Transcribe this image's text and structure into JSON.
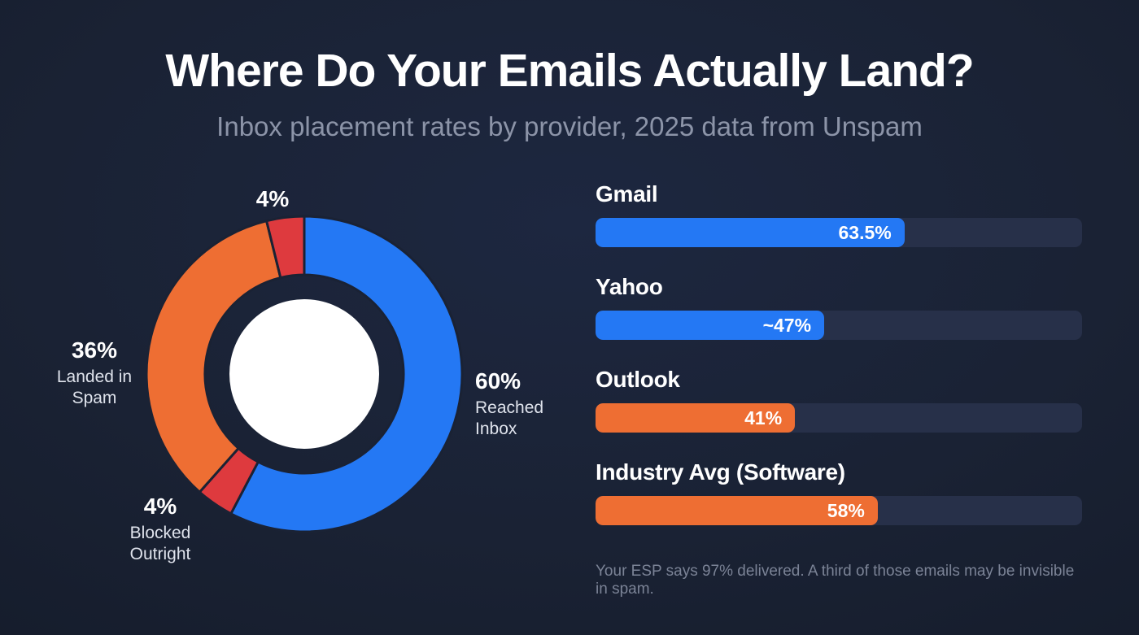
{
  "colors": {
    "background": "#1a2234",
    "blue": "#2478f4",
    "orange": "#ee6e33",
    "red": "#de3a3e",
    "track": "#273049",
    "white": "#ffffff"
  },
  "header": {
    "title": "Where Do Your Emails Actually Land?",
    "subtitle": "Inbox placement rates by provider, 2025 data from Unspam"
  },
  "chart_data": [
    {
      "type": "pie",
      "variant": "donut",
      "title": "Inbox placement breakdown",
      "slices": [
        {
          "label": "Reached Inbox",
          "value": 60,
          "color": "blue",
          "text_lines": [
            "60%",
            "Reached",
            "Inbox"
          ]
        },
        {
          "label": "Blocked Outright",
          "value": 4,
          "color": "red",
          "text_lines": [
            "4%",
            "Blocked",
            "Outright"
          ]
        },
        {
          "label": "Landed in Spam",
          "value": 36,
          "color": "orange",
          "text_lines": [
            "36%",
            "Landed in",
            "Spam"
          ]
        },
        {
          "label": "",
          "value": 4,
          "color": "red",
          "text_lines": [
            "4%"
          ]
        }
      ],
      "start_angle_deg": 0,
      "direction": "clockwise",
      "center_fill": "#ffffff"
    },
    {
      "type": "bar",
      "orientation": "horizontal",
      "categories": [
        "Gmail",
        "Yahoo",
        "Outlook",
        "Industry Avg (Software)"
      ],
      "values": [
        63.5,
        47,
        41,
        58
      ],
      "value_labels": [
        "63.5%",
        "~47%",
        "41%",
        "58%"
      ],
      "bar_colors": [
        "blue",
        "blue",
        "orange",
        "orange"
      ],
      "xlim": [
        0,
        100
      ],
      "footnote": "Your ESP says 97% delivered. A third of those emails may be invisible in spam."
    }
  ]
}
